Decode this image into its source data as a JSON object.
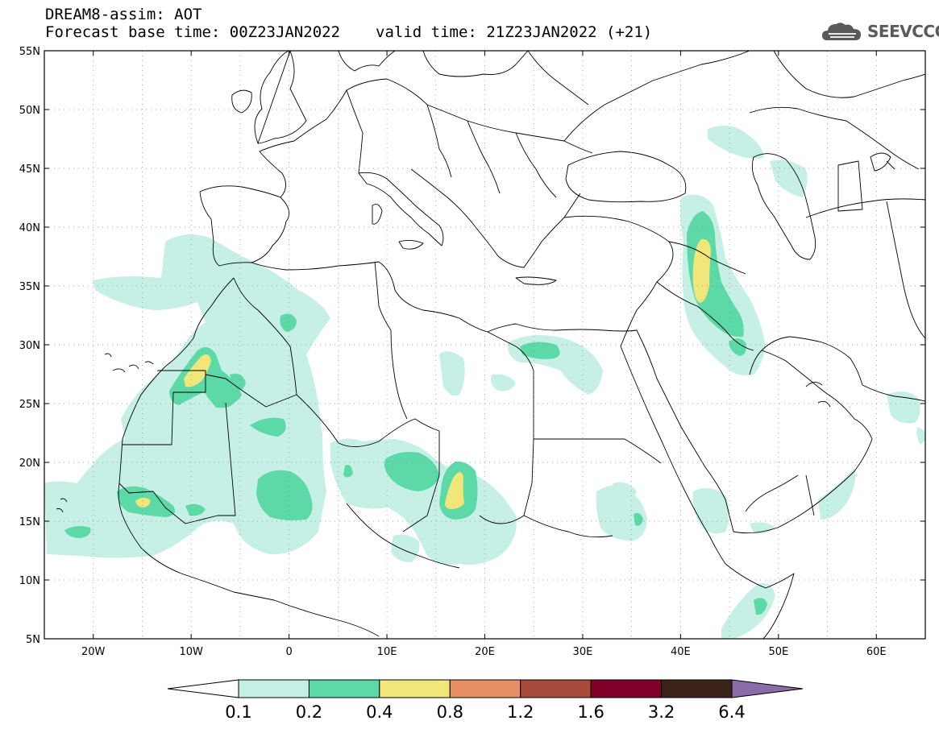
{
  "header": {
    "line1": "DREAM8-assim: AOT",
    "base_time": "Forecast base time: 00Z23JAN2022",
    "valid_time": "valid time: 21Z23JAN2022 (+21)"
  },
  "logo": {
    "text": "SEEVCCC",
    "color": "#5a5a5a"
  },
  "map": {
    "lon_range": [
      -25,
      65
    ],
    "lat_range": [
      5,
      55
    ],
    "lat_labels": [
      "55N",
      "50N",
      "45N",
      "40N",
      "35N",
      "30N",
      "25N",
      "20N",
      "15N",
      "10N",
      "5N"
    ],
    "lon_labels": [
      "20W",
      "10W",
      "0",
      "10E",
      "20E",
      "30E",
      "40E",
      "50E",
      "60E"
    ],
    "grid": "dotted"
  },
  "colorbar": {
    "colors": [
      "#ffffff",
      "#c6f0e6",
      "#5dd9a8",
      "#f0e67a",
      "#e88f66",
      "#a84a3c",
      "#80002a",
      "#3b2417",
      "#8b6ba8"
    ],
    "labels": [
      "0.1",
      "0.2",
      "0.4",
      "0.8",
      "1.2",
      "1.6",
      "3.2",
      "6.4"
    ]
  }
}
